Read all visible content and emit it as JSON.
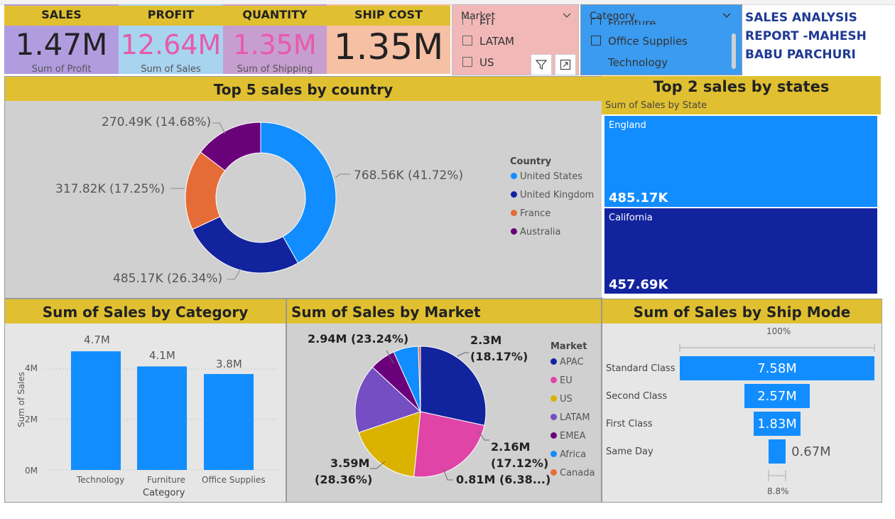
{
  "kpis": [
    {
      "head": "SALES",
      "value": "1.47M",
      "sub": "Sum of Profit"
    },
    {
      "head": "PROFIT",
      "value": "12.64M",
      "sub": "Sum of Sales"
    },
    {
      "head": "QUANTITY",
      "value": "1.35M",
      "sub": "Sum of Shipping"
    },
    {
      "head": "SHIP COST",
      "value": "1.35M",
      "sub": ""
    }
  ],
  "colors": {
    "purple_card": "#b29ce0",
    "sky_card": "#a8d4f0",
    "mauve_card": "#c79ed0",
    "peach_card": "#f6c0a4",
    "gold": "#e0c030",
    "pink_value": "#e85aa8",
    "blue": "#118dff",
    "navy": "#12239e",
    "orange": "#e66c37",
    "deep_purple": "#6b007b",
    "market_slicer_bg": "#f2b8b8",
    "category_slicer_bg": "#3a9bf0"
  },
  "market_slicer": {
    "title": "Market",
    "partial_top": "EU",
    "items": [
      "LATAM",
      "US"
    ]
  },
  "category_slicer": {
    "title": "Category",
    "partial_top": "Furniture",
    "items": [
      "Office Supplies",
      "Technology"
    ]
  },
  "toolbar": {
    "filter_icon": "filter-icon",
    "focus_icon": "focus-mode-icon",
    "more_label": "⋯"
  },
  "report_title": "SALES ANALYSIS REPORT -MAHESH BABU PARCHURI",
  "country_chart": {
    "title": "Top 5 sales by country",
    "legend_title": "Country",
    "labels": [
      "768.56K (41.72%)",
      "485.17K (26.34%)",
      "317.82K (17.25%)",
      "270.49K (14.68%)"
    ]
  },
  "states_chart": {
    "title": "Top 2 sales by states",
    "subtitle": "Sum of Sales by State"
  },
  "category_chart": {
    "title": "Sum of Sales by Category"
  },
  "market_chart": {
    "title": "Sum of Sales by Market",
    "legend_title": "Market",
    "labels": {
      "eu": "2.94M (23.24%)",
      "us_value": "2.3M",
      "us_pct": "(18.17%)",
      "latam_value": "2.16M",
      "latam_pct": "(17.12%)",
      "apac_value": "3.59M",
      "apac_pct": "(28.36%)",
      "emea": "0.81M (6.38...)"
    }
  },
  "shipmode_chart": {
    "title": "Sum of Sales by Ship Mode",
    "top_pct": "100%",
    "bottom_pct": "8.8%"
  },
  "chart_data": [
    {
      "type": "pie",
      "title": "Top 5 sales by country",
      "legend_title": "Country",
      "categories": [
        "United States",
        "United Kingdom",
        "France",
        "Australia"
      ],
      "values": [
        768.56,
        485.17,
        317.82,
        270.49
      ],
      "percents": [
        41.72,
        26.34,
        17.25,
        14.68
      ],
      "colors": [
        "#118dff",
        "#12239e",
        "#e66c37",
        "#6b007b"
      ],
      "legend": "right"
    },
    {
      "type": "bar",
      "title": "Top 2 sales by states",
      "subtitle": "Sum of Sales by State",
      "categories": [
        "England",
        "California"
      ],
      "values": [
        485.17,
        457.69
      ],
      "value_labels": [
        "485.17K",
        "457.69K"
      ],
      "colors": [
        "#118dff",
        "#12239e"
      ]
    },
    {
      "type": "bar",
      "title": "Sum of Sales by Category",
      "categories": [
        "Technology",
        "Furniture",
        "Office Supplies"
      ],
      "values": [
        4.7,
        4.1,
        3.8
      ],
      "value_labels": [
        "4.7M",
        "4.1M",
        "3.8M"
      ],
      "xlabel": "Category",
      "ylabel": "Sum of Sales",
      "yticks": [
        "0M",
        "2M",
        "4M"
      ],
      "ylim": [
        0,
        5
      ],
      "grid": true
    },
    {
      "type": "pie",
      "title": "Sum of Sales by Market",
      "legend_title": "Market",
      "categories": [
        "APAC",
        "EU",
        "US",
        "LATAM",
        "EMEA",
        "Africa",
        "Canada"
      ],
      "values": [
        3.59,
        2.94,
        2.3,
        2.16,
        0.81,
        0.78,
        0.07
      ],
      "colors": [
        "#12239e",
        "#e044a7",
        "#d9b300",
        "#744ec2",
        "#6b007b",
        "#118dff",
        "#e66c37"
      ],
      "legend": "right"
    },
    {
      "type": "bar",
      "orientation": "funnel",
      "title": "Sum of Sales by Ship Mode",
      "categories": [
        "Standard Class",
        "Second Class",
        "First Class",
        "Same Day"
      ],
      "values": [
        7.58,
        2.57,
        1.83,
        0.67
      ],
      "value_labels": [
        "7.58M",
        "2.57M",
        "1.83M",
        "0.67M"
      ]
    }
  ]
}
